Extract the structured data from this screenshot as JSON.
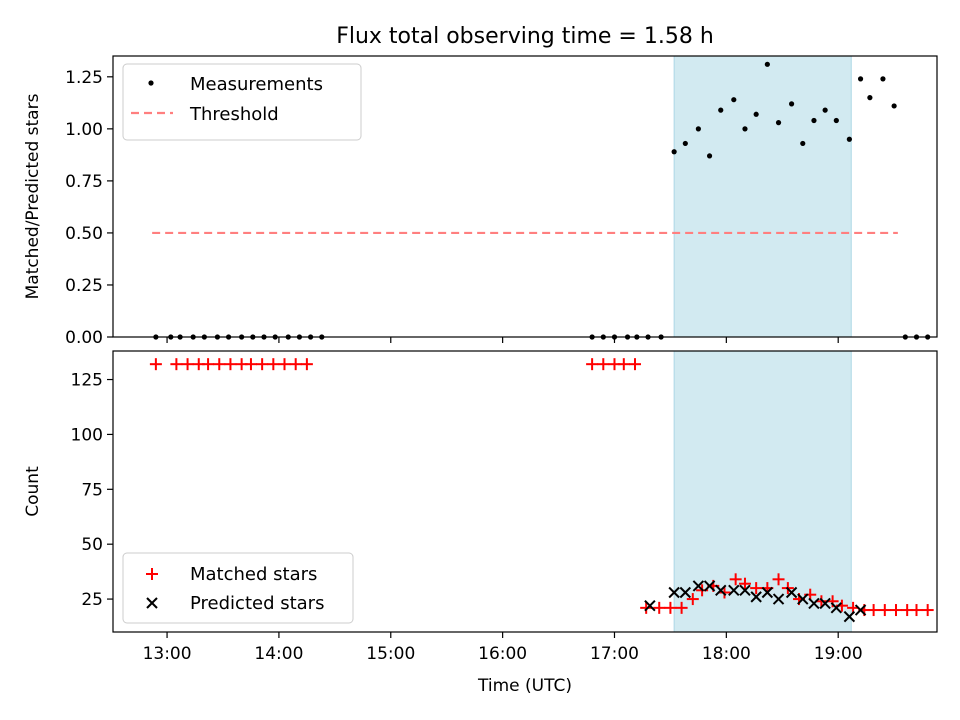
{
  "title": "Flux total observing time = 1.58 h",
  "chart_data": [
    {
      "type": "scatter",
      "ylabel": "Matched/Predicted stars",
      "xlabel": "",
      "xlim": [
        "12:31",
        "19:53"
      ],
      "ylim": [
        0,
        1.35
      ],
      "yticks": [
        0.0,
        0.25,
        0.5,
        0.75,
        1.0,
        1.25
      ],
      "ytick_labels": [
        "0.00",
        "0.25",
        "0.50",
        "0.75",
        "1.00",
        "1.25"
      ],
      "shaded_span": [
        "17:32",
        "19:07"
      ],
      "shade_color": "#add8e6",
      "legend_position": "upper left",
      "series": [
        {
          "name": "Measurements",
          "kind": "scatter-dot",
          "color": "#000000",
          "x": [
            "12:54",
            "13:02",
            "13:07",
            "13:14",
            "13:20",
            "13:27",
            "13:33",
            "13:40",
            "13:46",
            "13:52",
            "13:58",
            "14:05",
            "14:11",
            "14:17",
            "14:23",
            "16:48",
            "16:54",
            "17:00",
            "17:07",
            "17:12",
            "17:18",
            "17:25",
            "17:32",
            "17:38",
            "17:45",
            "17:51",
            "17:57",
            "18:04",
            "18:10",
            "18:16",
            "18:22",
            "18:28",
            "18:35",
            "18:41",
            "18:47",
            "18:53",
            "18:59",
            "19:06",
            "19:12",
            "19:17",
            "19:24",
            "19:30",
            "19:36",
            "19:42",
            "19:48"
          ],
          "y": [
            0,
            0,
            0,
            0,
            0,
            0,
            0,
            0,
            0,
            0,
            0,
            0,
            0,
            0,
            0,
            0,
            0,
            0,
            0,
            0,
            0,
            0,
            0.89,
            0.93,
            1.0,
            0.87,
            1.09,
            1.14,
            1.0,
            1.07,
            1.31,
            1.03,
            1.12,
            0.93,
            1.04,
            1.09,
            1.04,
            0.95,
            1.24,
            1.15,
            1.24,
            1.11,
            0,
            0,
            0
          ]
        },
        {
          "name": "Threshold",
          "kind": "dashed-line",
          "color": "#ff7f7f",
          "x": [
            "12:52",
            "19:32"
          ],
          "y": [
            0.5,
            0.5
          ]
        }
      ]
    },
    {
      "type": "scatter",
      "ylabel": "Count",
      "xlabel": "Time (UTC)",
      "xlim": [
        "12:31",
        "19:53"
      ],
      "ylim": [
        10,
        138
      ],
      "yticks": [
        25,
        50,
        75,
        100,
        125
      ],
      "ytick_labels": [
        "25",
        "50",
        "75",
        "100",
        "125"
      ],
      "xticks": [
        "13:00",
        "14:00",
        "15:00",
        "16:00",
        "17:00",
        "18:00",
        "19:00"
      ],
      "shaded_span": [
        "17:32",
        "19:07"
      ],
      "shade_color": "#add8e6",
      "legend_position": "lower left",
      "series": [
        {
          "name": "Matched stars",
          "kind": "plus",
          "color": "#ff0000",
          "x": [
            "12:54",
            "13:05",
            "13:11",
            "13:17",
            "13:22",
            "13:28",
            "13:34",
            "13:40",
            "13:45",
            "13:51",
            "13:57",
            "14:03",
            "14:09",
            "14:15",
            "16:48",
            "16:54",
            "17:00",
            "17:05",
            "17:11",
            "17:17",
            "17:24",
            "17:30",
            "17:36",
            "17:42",
            "17:47",
            "17:53",
            "17:59",
            "18:05",
            "18:10",
            "18:16",
            "18:22",
            "18:28",
            "18:33",
            "18:39",
            "18:45",
            "18:51",
            "18:57",
            "19:02",
            "19:08",
            "19:14",
            "19:19",
            "19:25",
            "19:31",
            "19:37",
            "19:42",
            "19:48"
          ],
          "y": [
            132,
            132,
            132,
            132,
            132,
            132,
            132,
            132,
            132,
            132,
            132,
            132,
            132,
            132,
            132,
            132,
            132,
            132,
            132,
            21,
            21,
            21,
            21,
            25,
            29,
            31,
            28,
            34,
            32,
            30,
            30,
            34,
            30,
            25,
            27,
            24,
            24,
            22,
            21,
            20,
            20,
            20,
            20,
            20,
            20,
            20
          ]
        },
        {
          "name": "Predicted stars",
          "kind": "x",
          "color": "#000000",
          "x": [
            "17:19",
            "17:32",
            "17:38",
            "17:45",
            "17:51",
            "17:57",
            "18:04",
            "18:10",
            "18:16",
            "18:22",
            "18:28",
            "18:35",
            "18:41",
            "18:47",
            "18:53",
            "18:59",
            "19:06",
            "19:12"
          ],
          "y": [
            22,
            28,
            28,
            31,
            31,
            29,
            29,
            29,
            26,
            28,
            25,
            28,
            25,
            23,
            23,
            21,
            17,
            20
          ]
        }
      ]
    }
  ]
}
